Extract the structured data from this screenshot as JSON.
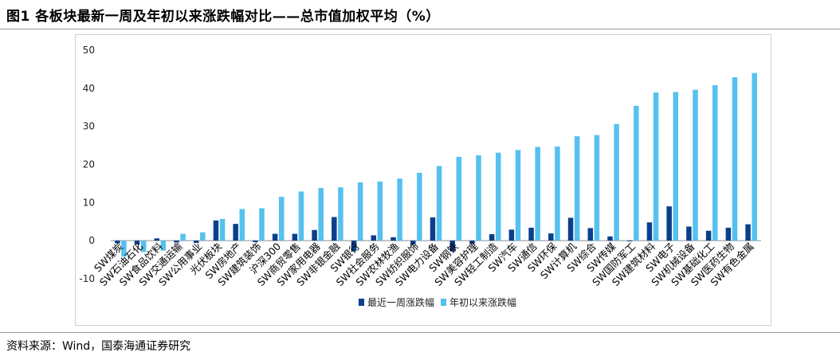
{
  "figure": {
    "title": "图1   各板块最新一周及年初以来涨跌幅对比——总市值加权平均（%）",
    "source": "资料来源：Wind，国泰海通证券研究"
  },
  "colors": {
    "weekly": "#0b3f8c",
    "ytd": "#55c1ee",
    "rule": "#9a9a9a"
  },
  "chart_data": {
    "type": "bar",
    "categories": [
      "SW煤炭",
      "SW石油石化",
      "SW食品饮料",
      "SW交通运输",
      "SW公用事业",
      "光伏板块",
      "SW房地产",
      "SW建筑装饰",
      "沪深300",
      "SW商贸零售",
      "SW家用电器",
      "SW非银金融",
      "SW银行",
      "SW社会服务",
      "SW农林牧渔",
      "SW纺织服饰",
      "SW电力设备",
      "SW钢铁",
      "SW美容护理",
      "SW轻工制造",
      "SW汽车",
      "SW通信",
      "SW环保",
      "SW计算机",
      "SW综合",
      "SW传媒",
      "SW国防军工",
      "SW建筑材料",
      "SW电子",
      "SW机械设备",
      "SW基础化工",
      "SW医药生物",
      "SW有色金属"
    ],
    "series": [
      {
        "name": "最近一周涨跌幅",
        "values": [
          -0.7,
          -1.0,
          0.6,
          -0.5,
          -0.6,
          5.3,
          4.4,
          -0.4,
          1.8,
          1.8,
          2.8,
          6.2,
          -2.8,
          1.4,
          0.9,
          -1.0,
          6.1,
          -2.8,
          -0.8,
          1.7,
          2.9,
          3.4,
          1.9,
          6.0,
          3.3,
          1.1,
          -0.2,
          4.8,
          9.0,
          3.7,
          2.6,
          3.4,
          4.3
        ]
      },
      {
        "name": "年初以来涨跌幅",
        "values": [
          -4.2,
          -3.0,
          -2.6,
          1.8,
          2.2,
          5.7,
          8.3,
          8.5,
          11.5,
          12.9,
          13.8,
          14.0,
          15.3,
          15.5,
          16.3,
          17.8,
          19.6,
          22.0,
          22.4,
          23.1,
          23.8,
          24.6,
          24.7,
          27.4,
          27.7,
          30.6,
          35.4,
          38.9,
          39.0,
          39.6,
          40.8,
          42.9,
          44.0
        ]
      }
    ],
    "yticks": [
      -10,
      0,
      10,
      20,
      30,
      40,
      50
    ],
    "ylim": [
      -10,
      50
    ],
    "grid": false,
    "legend": "bottom"
  }
}
